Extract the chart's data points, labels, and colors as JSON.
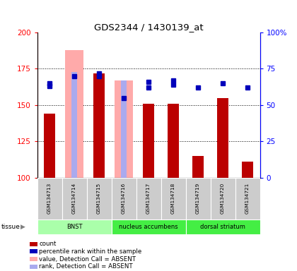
{
  "title": "GDS2344 / 1430139_at",
  "samples": [
    "GSM134713",
    "GSM134714",
    "GSM134715",
    "GSM134716",
    "GSM134717",
    "GSM134718",
    "GSM134719",
    "GSM134720",
    "GSM134721"
  ],
  "count_values": [
    144,
    null,
    172,
    null,
    151,
    151,
    115,
    155,
    111
  ],
  "count_absent_values": [
    null,
    188,
    null,
    167,
    null,
    null,
    null,
    null,
    null
  ],
  "rank_values_left": [
    163,
    null,
    172,
    null,
    162,
    164,
    null,
    null,
    null
  ],
  "rank_absent_values_left": [
    null,
    173,
    null,
    167,
    null,
    null,
    null,
    null,
    null
  ],
  "percentile_present": [
    65,
    null,
    70,
    null,
    66,
    67,
    null,
    null,
    null
  ],
  "percentile_absent_right": [
    null,
    70,
    null,
    55,
    null,
    null,
    62,
    65,
    62
  ],
  "ylim_left": [
    100,
    200
  ],
  "ylim_right": [
    0,
    100
  ],
  "yticks_left": [
    100,
    125,
    150,
    175,
    200
  ],
  "yticks_right": [
    0,
    25,
    50,
    75,
    100
  ],
  "ytick_labels_left": [
    "100",
    "125",
    "150",
    "175",
    "200"
  ],
  "ytick_labels_right": [
    "0",
    "25",
    "50",
    "75",
    "100%"
  ],
  "bar_color_red": "#BB0000",
  "bar_color_pink": "#FFAAAA",
  "bar_color_lightblue": "#AAAAEE",
  "dot_color_blue": "#0000BB",
  "tissue_colors": [
    "#AAFFAA",
    "#44EE44",
    "#44EE44"
  ],
  "tissue_labels": [
    "BNST",
    "nucleus accumbens",
    "dorsal striatum"
  ],
  "tissue_ranges": [
    [
      0,
      3
    ],
    [
      3,
      6
    ],
    [
      6,
      9
    ]
  ],
  "legend_items": [
    {
      "label": "count",
      "color": "#BB0000"
    },
    {
      "label": "percentile rank within the sample",
      "color": "#0000BB"
    },
    {
      "label": "value, Detection Call = ABSENT",
      "color": "#FFAAAA"
    },
    {
      "label": "rank, Detection Call = ABSENT",
      "color": "#AAAAEE"
    }
  ]
}
